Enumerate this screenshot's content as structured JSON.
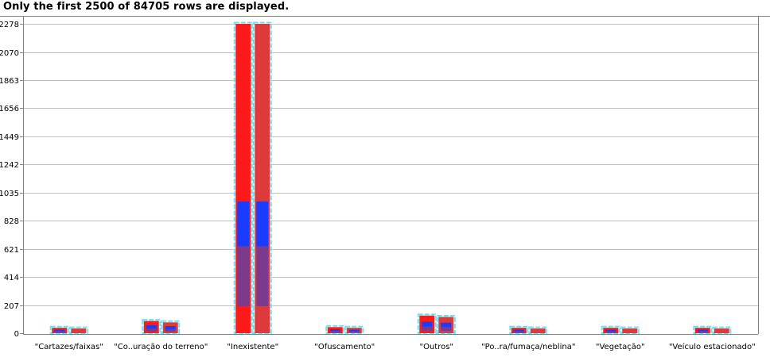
{
  "notice": "Only the first 2500 of 84705 rows are displayed.",
  "chart_data": {
    "type": "bar",
    "ylim": [
      0,
      2278
    ],
    "yticks": [
      "0",
      "207",
      "414",
      "621",
      "828",
      "1035",
      "1242",
      "1449",
      "1656",
      "1863",
      "2070",
      "2278"
    ],
    "grid": true,
    "categories": [
      "\"Cartazes/faixas\"",
      "\"Co..uração do terreno\"",
      "\"Inexistente\"",
      "\"Ofuscamento\"",
      "\"Outros\"",
      "\"Po..ra/fumaça/neblina\"",
      "\"Vegetação\"",
      "\"Veículo estacionado\""
    ],
    "series": [
      {
        "values": [
          40,
          90,
          2278,
          45,
          130,
          40,
          40,
          40
        ]
      },
      {
        "values": [
          35,
          80,
          2278,
          40,
          120,
          35,
          35,
          35
        ]
      }
    ],
    "colors": {
      "bar_primary": "#ff1a1a",
      "bar_secondary": "#dd3b3b",
      "bar_outline": "#6ee0f0",
      "segment_blue": "#1a3cff",
      "segment_purple": "#7b3a8c",
      "grid": "#c0c0c0",
      "axis": "#808080"
    }
  }
}
